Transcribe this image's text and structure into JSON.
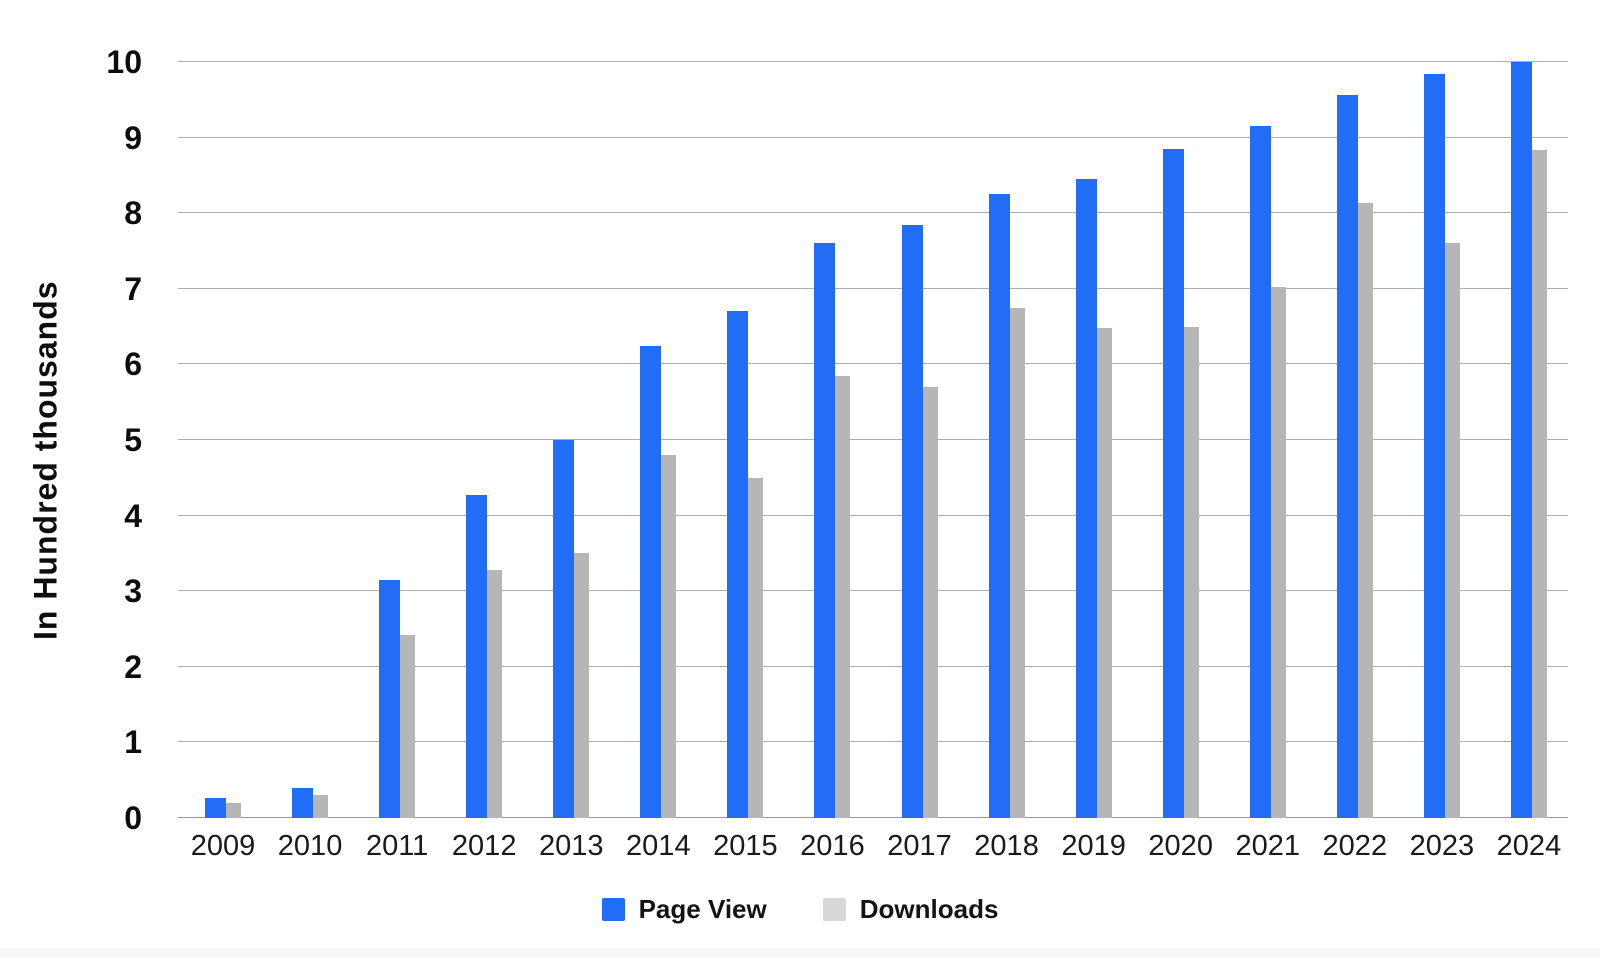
{
  "chart_data": {
    "type": "bar",
    "title": "",
    "xlabel": "",
    "ylabel": "In Hundred thousands",
    "ylim": [
      0,
      10
    ],
    "yticks": [
      "0",
      "1",
      "2",
      "3",
      "4",
      "5",
      "6",
      "7",
      "8",
      "9",
      "10"
    ],
    "grid": "horizontal",
    "gridline_color": "#adadad",
    "legend_position": "bottom-center",
    "background_color": "#ffffff",
    "categories": [
      "2009",
      "2010",
      "2011",
      "2012",
      "2013",
      "2014",
      "2015",
      "2016",
      "2017",
      "2018",
      "2019",
      "2020",
      "2021",
      "2022",
      "2023",
      "2024"
    ],
    "series": [
      {
        "name": "Page View",
        "color": "#216df5",
        "legend_color": "#216df5",
        "values": [
          0.26,
          0.4,
          3.15,
          4.27,
          5.0,
          6.25,
          6.7,
          7.6,
          7.85,
          8.25,
          8.45,
          8.85,
          9.15,
          9.57,
          9.84,
          10.0
        ]
      },
      {
        "name": "Downloads",
        "color": "#b6b6b6",
        "legend_color": "#d8d8d8",
        "values": [
          0.2,
          0.3,
          2.42,
          3.28,
          3.5,
          4.8,
          4.5,
          5.85,
          5.7,
          6.75,
          6.48,
          6.5,
          7.03,
          8.14,
          7.6,
          8.84
        ]
      }
    ]
  }
}
